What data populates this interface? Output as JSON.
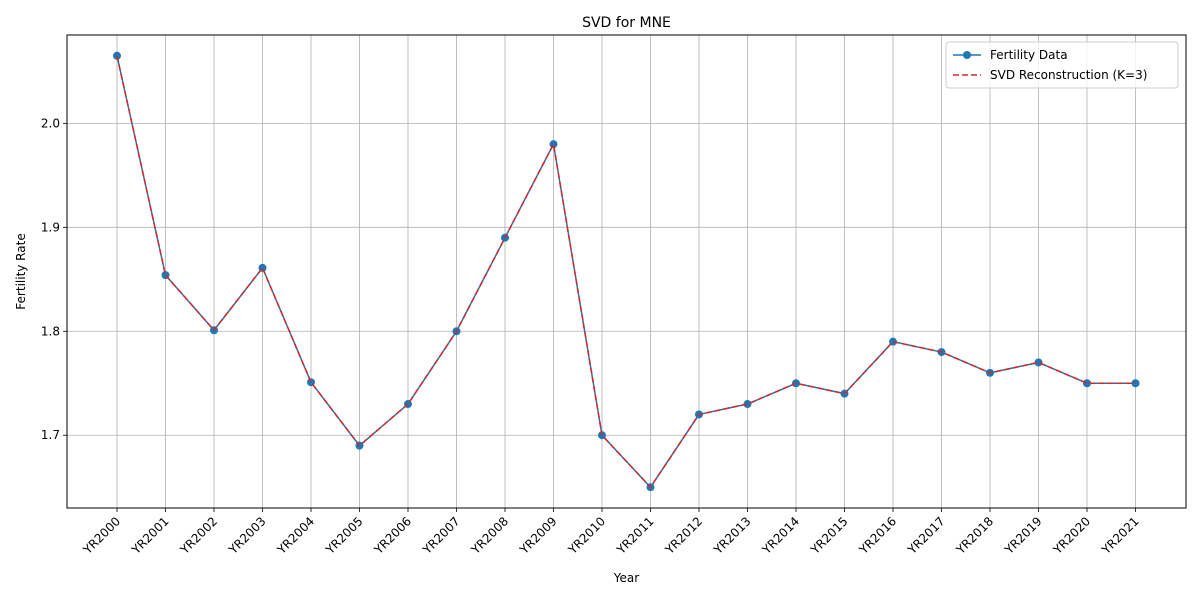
{
  "chart_data": {
    "type": "line",
    "title": "SVD for MNE",
    "xlabel": "Year",
    "ylabel": "Fertility Rate",
    "categories": [
      "YR2000",
      "YR2001",
      "YR2002",
      "YR2003",
      "YR2004",
      "YR2005",
      "YR2006",
      "YR2007",
      "YR2008",
      "YR2009",
      "YR2010",
      "YR2011",
      "YR2012",
      "YR2013",
      "YR2014",
      "YR2015",
      "YR2016",
      "YR2017",
      "YR2018",
      "YR2019",
      "YR2020",
      "YR2021"
    ],
    "ylim": [
      1.63,
      2.085
    ],
    "yticks": [
      "1.7",
      "1.8",
      "1.9",
      "2.0"
    ],
    "ytick_values": [
      1.7,
      1.8,
      1.9,
      2.0
    ],
    "grid": true,
    "legend_position": "top-right",
    "series": [
      {
        "name": "Fertility Data",
        "style": "solid-with-circle-markers",
        "color": "#1f77b4",
        "values": [
          2.065,
          1.854,
          1.801,
          1.861,
          1.751,
          1.69,
          1.73,
          1.8,
          1.89,
          1.98,
          1.7,
          1.65,
          1.72,
          1.73,
          1.75,
          1.74,
          1.79,
          1.78,
          1.76,
          1.77,
          1.75,
          1.75
        ]
      },
      {
        "name": "SVD Reconstruction (K=3)",
        "style": "dashed",
        "color": "#d62728",
        "values": [
          2.065,
          1.854,
          1.801,
          1.861,
          1.751,
          1.69,
          1.73,
          1.8,
          1.89,
          1.98,
          1.7,
          1.65,
          1.72,
          1.73,
          1.75,
          1.74,
          1.79,
          1.78,
          1.76,
          1.77,
          1.75,
          1.75
        ]
      }
    ]
  }
}
